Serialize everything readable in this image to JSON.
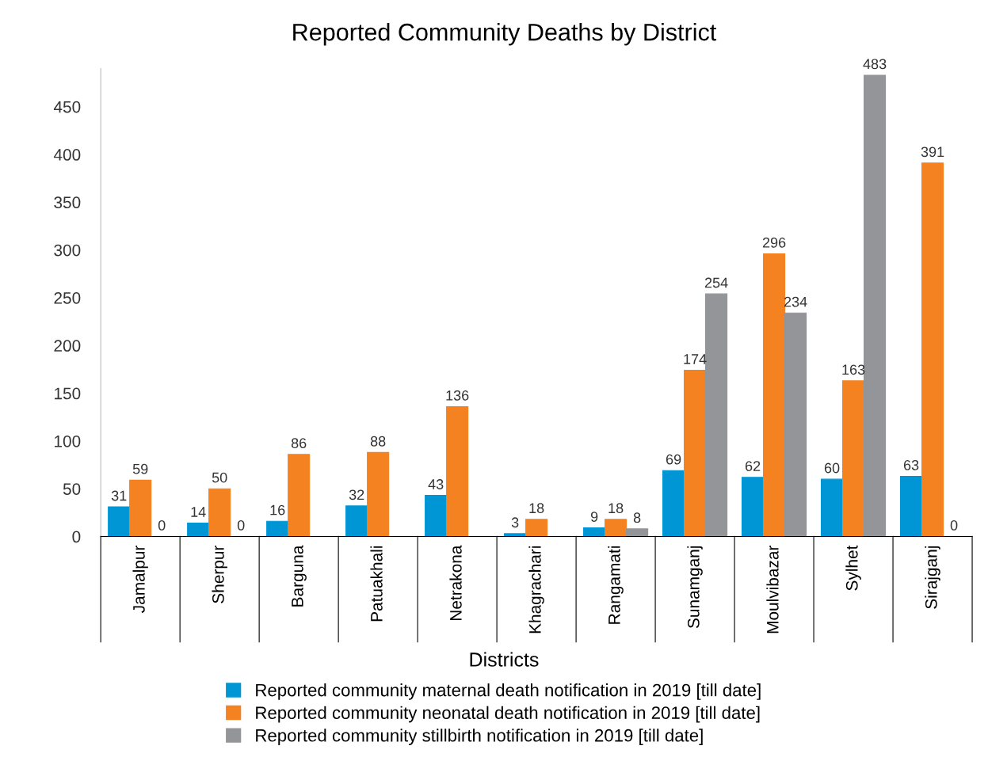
{
  "chart_data": {
    "type": "bar",
    "title": "Reported Community Deaths by District",
    "xlabel": "Districts",
    "categories": [
      "Jamalpur",
      "Sherpur",
      "Barguna",
      "Patuakhali",
      "Netrakona",
      "Khagrachari",
      "Rangamati",
      "Sunamganj",
      "Moulvibazar",
      "Sylhet",
      "Sirajganj"
    ],
    "series": [
      {
        "name": "Reported community maternal death notification in 2019 [till date]",
        "color": "#0096d6",
        "values": [
          31,
          14,
          16,
          32,
          43,
          3,
          9,
          69,
          62,
          60,
          63
        ]
      },
      {
        "name": "Reported community neonatal death notification in 2019 [till date]",
        "color": "#f58220",
        "values": [
          59,
          50,
          86,
          88,
          136,
          18,
          18,
          174,
          296,
          163,
          391
        ]
      },
      {
        "name": "Reported community stillbirth notification in 2019 [till date]",
        "color": "#939598",
        "values": [
          0,
          0,
          null,
          null,
          null,
          null,
          8,
          254,
          234,
          483,
          0
        ]
      }
    ],
    "ylim": [
      0,
      490
    ],
    "yticks": [
      0,
      50,
      100,
      150,
      200,
      250,
      300,
      350,
      400,
      450
    ],
    "data_labels": true,
    "grid": false,
    "legend": "bottom"
  }
}
